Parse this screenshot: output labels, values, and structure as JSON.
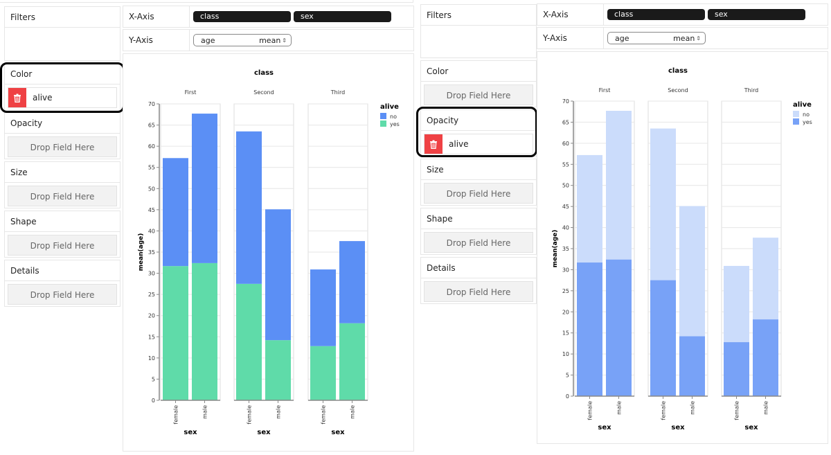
{
  "panels": [
    {
      "id": "left",
      "sidebar": {
        "filters_label": "Filters",
        "color": {
          "label": "Color",
          "field": "alive"
        },
        "opacity": {
          "label": "Opacity",
          "placeholder": "Drop Field Here"
        },
        "size": {
          "label": "Size",
          "placeholder": "Drop Field Here"
        },
        "shape": {
          "label": "Shape",
          "placeholder": "Drop Field Here"
        },
        "details": {
          "label": "Details",
          "placeholder": "Drop Field Here"
        }
      },
      "x_axis": {
        "label": "X-Axis",
        "fields": [
          "class",
          "sex"
        ]
      },
      "y_axis": {
        "label": "Y-Axis",
        "field": "age",
        "aggregate": "mean",
        "aggregate_icon": "⇕"
      },
      "highlighted_section": "Color"
    },
    {
      "id": "right",
      "sidebar": {
        "filters_label": "Filters",
        "color": {
          "label": "Color",
          "placeholder": "Drop Field Here"
        },
        "opacity": {
          "label": "Opacity",
          "field": "alive"
        },
        "size": {
          "label": "Size",
          "placeholder": "Drop Field Here"
        },
        "shape": {
          "label": "Shape",
          "placeholder": "Drop Field Here"
        },
        "details": {
          "label": "Details",
          "placeholder": "Drop Field Here"
        }
      },
      "x_axis": {
        "label": "X-Axis",
        "fields": [
          "class",
          "sex"
        ]
      },
      "y_axis": {
        "label": "Y-Axis",
        "field": "age",
        "aggregate": "mean",
        "aggregate_icon": "⇕"
      },
      "highlighted_section": "Opacity"
    }
  ],
  "icons": {
    "remove_field": "trash-icon"
  },
  "colors": {
    "no_color_mode": "#5b8ff5",
    "yes_color_mode": "#5fdba9",
    "no_opacity_mode": "#cbdcfb",
    "yes_opacity_mode": "#78a2f7",
    "trash_bg": "#ef4144",
    "pill_bg": "#1a1a1a"
  },
  "chart_data": [
    {
      "type": "bar",
      "stacked": true,
      "title": "class",
      "facet_field": "class",
      "facets": [
        "First",
        "Second",
        "Third"
      ],
      "categories": [
        "female",
        "male"
      ],
      "xlabel": "sex",
      "ylabel": "mean(age)",
      "ylim": [
        0,
        70
      ],
      "yticks": [
        0,
        5,
        10,
        15,
        20,
        25,
        30,
        35,
        40,
        45,
        50,
        55,
        60,
        65,
        70
      ],
      "legend": {
        "title": "alive",
        "position": "right",
        "entries": [
          "no",
          "yes"
        ]
      },
      "encoding": "color",
      "grid": true,
      "series": [
        {
          "name": "yes",
          "color": "#5fdba9",
          "values": {
            "First": [
              31.7,
              32.4
            ],
            "Second": [
              27.5,
              14.2
            ],
            "Third": [
              12.8,
              18.2
            ]
          }
        },
        {
          "name": "no",
          "color": "#5b8ff5",
          "values": {
            "First": [
              25.5,
              35.3
            ],
            "Second": [
              36.0,
              30.9
            ],
            "Third": [
              18.1,
              19.4
            ]
          }
        }
      ],
      "totals": {
        "First": [
          57.2,
          67.7
        ],
        "Second": [
          63.5,
          45.1
        ],
        "Third": [
          30.9,
          37.6
        ]
      }
    },
    {
      "type": "bar",
      "stacked": false,
      "overlay": true,
      "title": "class",
      "facet_field": "class",
      "facets": [
        "First",
        "Second",
        "Third"
      ],
      "categories": [
        "female",
        "male"
      ],
      "xlabel": "sex",
      "ylabel": "mean(age)",
      "ylim": [
        0,
        70
      ],
      "yticks": [
        0,
        5,
        10,
        15,
        20,
        25,
        30,
        35,
        40,
        45,
        50,
        55,
        60,
        65,
        70
      ],
      "legend": {
        "title": "alive",
        "position": "right",
        "entries": [
          "no",
          "yes"
        ]
      },
      "encoding": "opacity",
      "grid": true,
      "series": [
        {
          "name": "no",
          "color": "#cbdcfb",
          "values": {
            "First": [
              57.2,
              67.7
            ],
            "Second": [
              63.5,
              45.1
            ],
            "Third": [
              30.9,
              37.6
            ]
          }
        },
        {
          "name": "yes",
          "color": "#78a2f7",
          "values": {
            "First": [
              31.7,
              32.4
            ],
            "Second": [
              27.5,
              14.2
            ],
            "Third": [
              12.8,
              18.2
            ]
          }
        }
      ]
    }
  ]
}
